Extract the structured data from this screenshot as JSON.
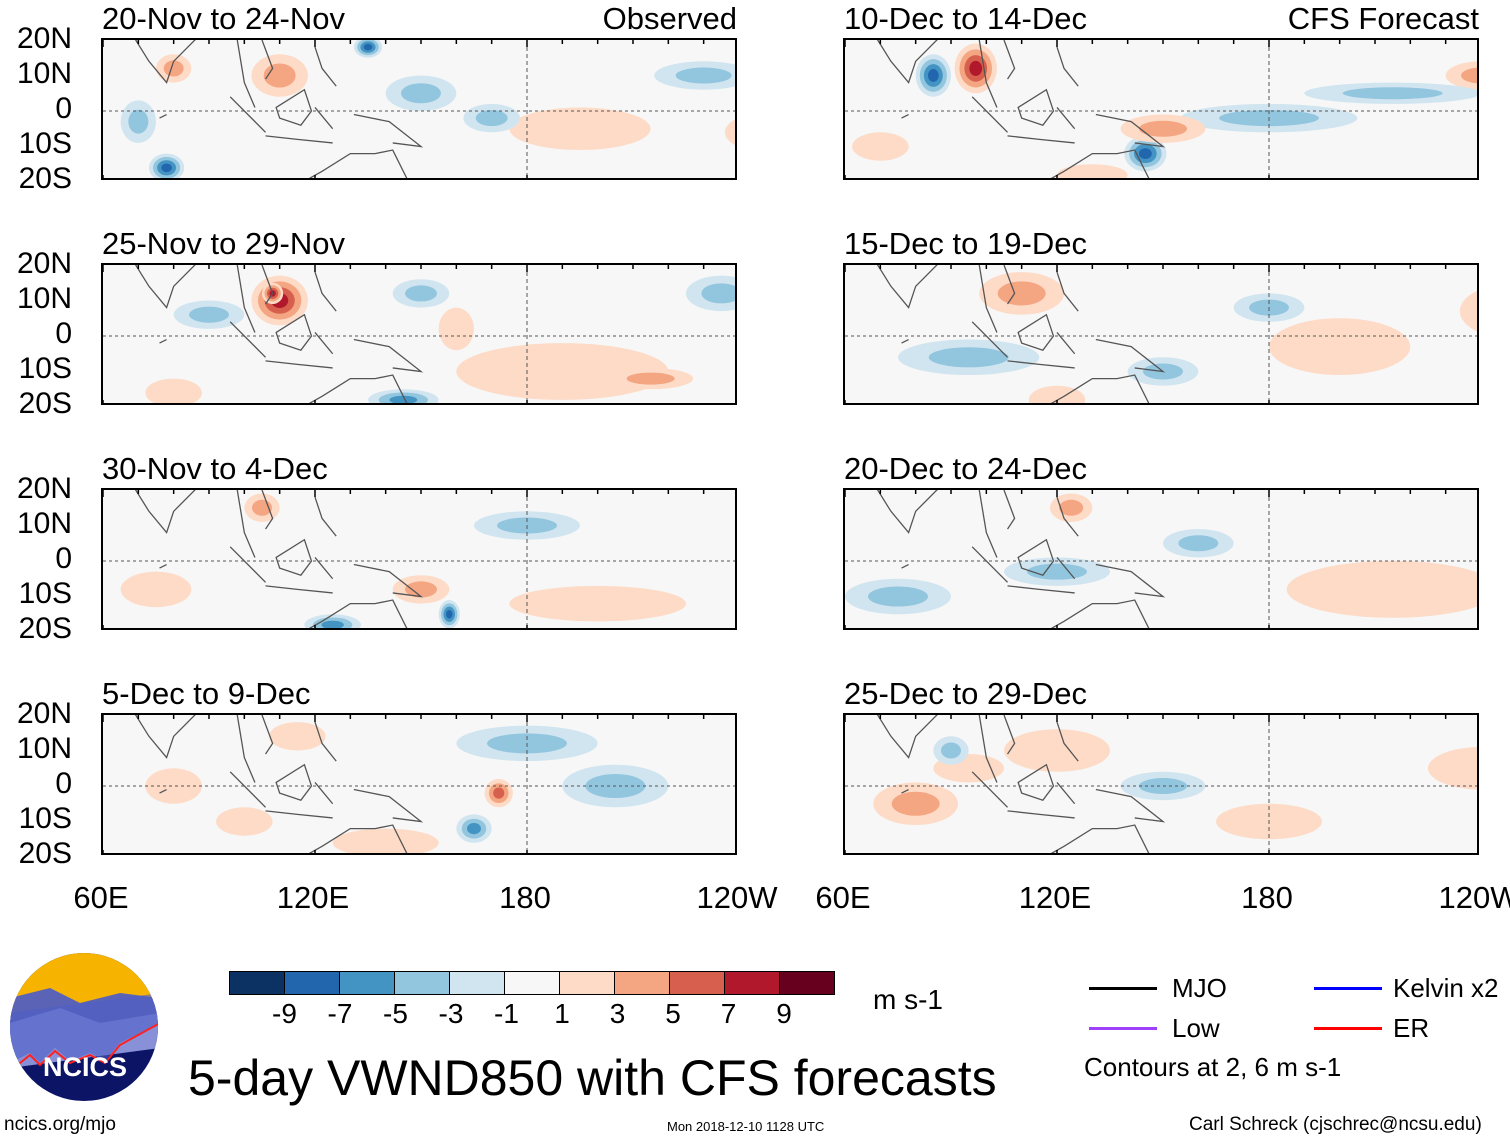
{
  "panels_left": {
    "header": "Observed",
    "titles": [
      "20-Nov to 24-Nov",
      "25-Nov to 29-Nov",
      "30-Nov to 4-Dec",
      "5-Dec to 9-Dec"
    ]
  },
  "panels_right": {
    "header": "CFS Forecast",
    "titles": [
      "10-Dec to 14-Dec",
      "15-Dec to 19-Dec",
      "20-Dec to 24-Dec",
      "25-Dec to 29-Dec"
    ]
  },
  "lat_labels": [
    "20N",
    "10N",
    "0",
    "10S",
    "20S"
  ],
  "lon_labels": [
    "60E",
    "120E",
    "180",
    "120W"
  ],
  "colorbar": {
    "labels": [
      "-9",
      "-7",
      "-5",
      "-3",
      "-1",
      "1",
      "3",
      "5",
      "7",
      "9"
    ],
    "colors": [
      "#0b3262",
      "#2266ae",
      "#4393c3",
      "#92c5de",
      "#d1e5f0",
      "#f7f7f7",
      "#fddbc7",
      "#f4a582",
      "#d6604d",
      "#b2182b",
      "#67001f"
    ],
    "units": "m s-1"
  },
  "legend": {
    "items": [
      {
        "label": "MJO",
        "color": "#000000"
      },
      {
        "label": "Kelvin x2",
        "color": "#0000ff"
      },
      {
        "label": "Low",
        "color": "#a040ff"
      },
      {
        "label": "ER",
        "color": "#ff0000"
      }
    ],
    "contours": "Contours at 2, 6 m s-1"
  },
  "title": "5-day VWND850 with CFS forecasts",
  "logo_text": "NCICS",
  "url": "ncics.org/mjo",
  "timestamp": "Mon 2018-12-10 1128 UTC",
  "credit": "Carl Schreck (cjschrec@ncsu.edu)",
  "chart_data": {
    "type": "heatmap",
    "variable": "850-hPa meridional wind anomaly",
    "units": "m s-1",
    "lon_range": [
      "60E",
      "120W"
    ],
    "lat_range": [
      "20S",
      "20N"
    ],
    "levels": [
      -9,
      -7,
      -5,
      -3,
      -1,
      1,
      3,
      5,
      7,
      9
    ]
  }
}
